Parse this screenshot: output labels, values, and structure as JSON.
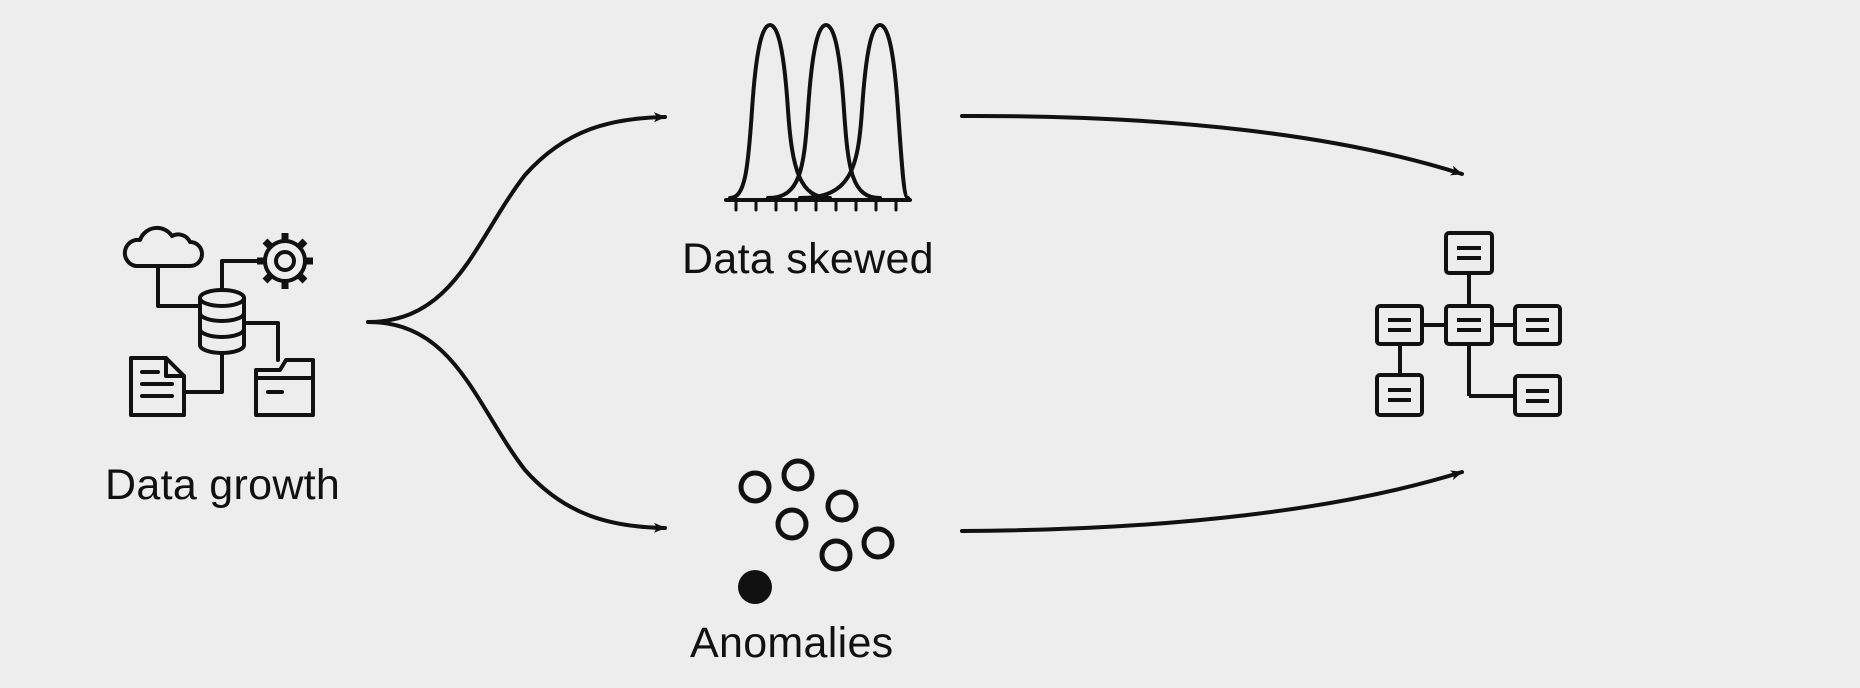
{
  "nodes": {
    "data_growth": {
      "label": "Data growth",
      "icon": "data-sources-icon"
    },
    "data_skewed": {
      "label": "Data skewed",
      "icon": "distribution-curves-icon"
    },
    "anomalies": {
      "label": "Anomalies",
      "icon": "outlier-dots-icon"
    },
    "outcome": {
      "label": "",
      "icon": "hierarchy-tree-icon"
    }
  },
  "edges": [
    {
      "from": "data_growth",
      "to": "data_skewed"
    },
    {
      "from": "data_growth",
      "to": "anomalies"
    },
    {
      "from": "data_skewed",
      "to": "outcome"
    },
    {
      "from": "anomalies",
      "to": "outcome"
    }
  ],
  "colors": {
    "background": "#ededed",
    "stroke": "#111111"
  }
}
